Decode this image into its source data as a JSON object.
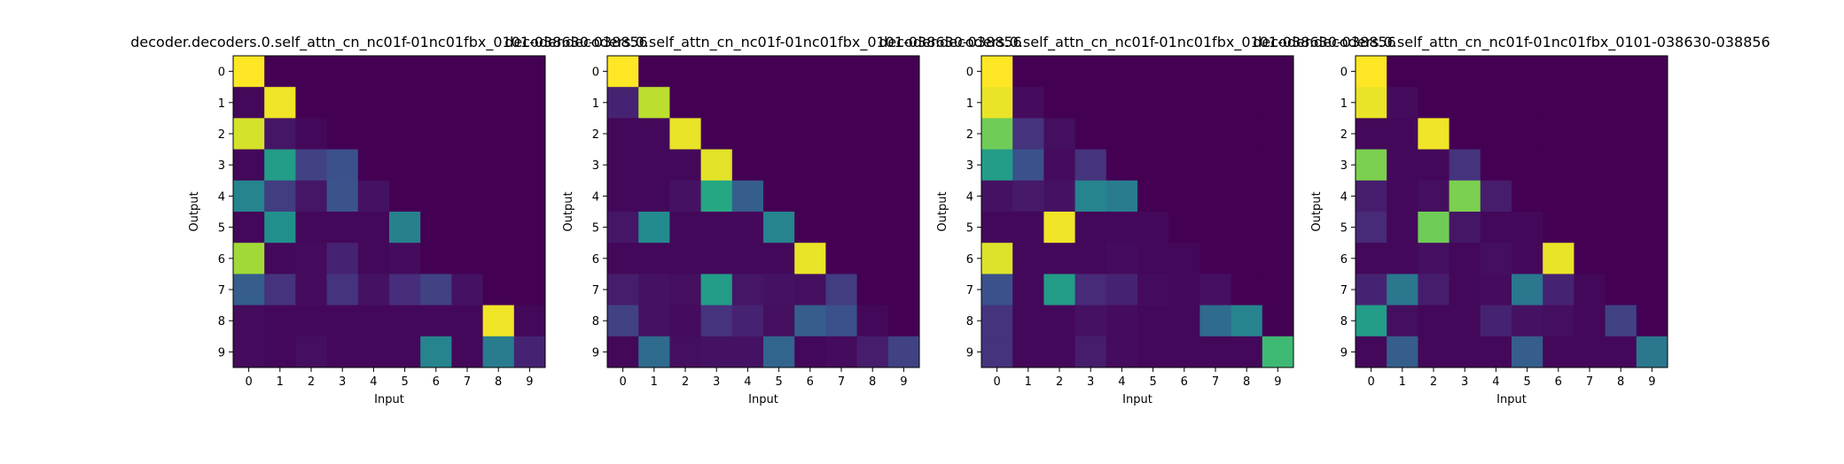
{
  "chart_data": [
    {
      "type": "heatmap",
      "title": "decoder.decoders.0.self_attn_cn_nc01f-01nc01fbx_0101-038630-038856",
      "xlabel": "Input",
      "ylabel": "Output",
      "x": [
        "0",
        "1",
        "2",
        "3",
        "4",
        "5",
        "6",
        "7",
        "8",
        "9"
      ],
      "y": [
        "0",
        "1",
        "2",
        "3",
        "4",
        "5",
        "6",
        "7",
        "8",
        "9"
      ],
      "colormap": "viridis",
      "values": [
        [
          1.0,
          0,
          0,
          0,
          0,
          0,
          0,
          0,
          0,
          0
        ],
        [
          0.02,
          0.98,
          0,
          0,
          0,
          0,
          0,
          0,
          0,
          0
        ],
        [
          0.94,
          0.06,
          0.02,
          0,
          0,
          0,
          0,
          0,
          0,
          0
        ],
        [
          0.02,
          0.55,
          0.2,
          0.25,
          0,
          0,
          0,
          0,
          0,
          0
        ],
        [
          0.45,
          0.18,
          0.06,
          0.26,
          0.05,
          0,
          0,
          0,
          0,
          0
        ],
        [
          0.02,
          0.5,
          0.02,
          0.02,
          0.02,
          0.44,
          0,
          0,
          0,
          0
        ],
        [
          0.86,
          0.02,
          0.03,
          0.1,
          0.02,
          0.03,
          0,
          0,
          0,
          0
        ],
        [
          0.3,
          0.15,
          0.03,
          0.15,
          0.05,
          0.13,
          0.2,
          0.05,
          0,
          0
        ],
        [
          0.03,
          0.02,
          0.02,
          0.02,
          0.02,
          0.02,
          0.02,
          0.02,
          0.98,
          0.02
        ],
        [
          0.03,
          0.02,
          0.04,
          0.02,
          0.02,
          0.02,
          0.45,
          0.02,
          0.42,
          0.1
        ]
      ]
    },
    {
      "type": "heatmap",
      "title": "decoder.decoders.0.self_attn_cn_nc01f-01nc01fbx_0101-038630-038856",
      "xlabel": "Input",
      "ylabel": "Output",
      "x": [
        "0",
        "1",
        "2",
        "3",
        "4",
        "5",
        "6",
        "7",
        "8",
        "9"
      ],
      "y": [
        "0",
        "1",
        "2",
        "3",
        "4",
        "5",
        "6",
        "7",
        "8",
        "9"
      ],
      "colormap": "viridis",
      "values": [
        [
          1.0,
          0,
          0,
          0,
          0,
          0,
          0,
          0,
          0,
          0
        ],
        [
          0.1,
          0.9,
          0,
          0,
          0,
          0,
          0,
          0,
          0,
          0
        ],
        [
          0.02,
          0.02,
          0.97,
          0,
          0,
          0,
          0,
          0,
          0,
          0
        ],
        [
          0.02,
          0.02,
          0.02,
          0.96,
          0,
          0,
          0,
          0,
          0,
          0
        ],
        [
          0.02,
          0.02,
          0.05,
          0.6,
          0.3,
          0,
          0,
          0,
          0,
          0
        ],
        [
          0.06,
          0.48,
          0.02,
          0.02,
          0.02,
          0.45,
          0,
          0,
          0,
          0
        ],
        [
          0.02,
          0.02,
          0.02,
          0.02,
          0.02,
          0.02,
          0.97,
          0,
          0,
          0
        ],
        [
          0.08,
          0.05,
          0.04,
          0.55,
          0.06,
          0.05,
          0.04,
          0.18,
          0,
          0
        ],
        [
          0.2,
          0.05,
          0.03,
          0.15,
          0.1,
          0.04,
          0.3,
          0.25,
          0.02,
          0
        ],
        [
          0.02,
          0.35,
          0.04,
          0.05,
          0.05,
          0.33,
          0.02,
          0.03,
          0.08,
          0.2
        ]
      ]
    },
    {
      "type": "heatmap",
      "title": "decoder.decoders.0.self_attn_cn_nc01f-01nc01fbx_0101-038630-038856",
      "xlabel": "Input",
      "ylabel": "Output",
      "x": [
        "0",
        "1",
        "2",
        "3",
        "4",
        "5",
        "6",
        "7",
        "8",
        "9"
      ],
      "y": [
        "0",
        "1",
        "2",
        "3",
        "4",
        "5",
        "6",
        "7",
        "8",
        "9"
      ],
      "colormap": "viridis",
      "values": [
        [
          1.0,
          0,
          0,
          0,
          0,
          0,
          0,
          0,
          0,
          0
        ],
        [
          0.97,
          0.03,
          0,
          0,
          0,
          0,
          0,
          0,
          0,
          0
        ],
        [
          0.78,
          0.15,
          0.04,
          0,
          0,
          0,
          0,
          0,
          0,
          0
        ],
        [
          0.55,
          0.25,
          0.03,
          0.15,
          0,
          0,
          0,
          0,
          0,
          0
        ],
        [
          0.05,
          0.07,
          0.05,
          0.45,
          0.42,
          0,
          0,
          0,
          0,
          0
        ],
        [
          0.02,
          0.02,
          0.98,
          0.02,
          0.02,
          0.02,
          0,
          0,
          0,
          0
        ],
        [
          0.95,
          0.02,
          0.02,
          0.02,
          0.03,
          0.02,
          0.02,
          0,
          0,
          0
        ],
        [
          0.25,
          0.02,
          0.55,
          0.12,
          0.1,
          0.03,
          0.02,
          0.04,
          0,
          0
        ],
        [
          0.15,
          0.02,
          0.02,
          0.05,
          0.03,
          0.02,
          0.02,
          0.35,
          0.45,
          0
        ],
        [
          0.15,
          0.02,
          0.02,
          0.08,
          0.03,
          0.02,
          0.02,
          0.02,
          0.02,
          0.68
        ]
      ]
    },
    {
      "type": "heatmap",
      "title": "decoder.decoders.0.self_attn_cn_nc01f-01nc01fbx_0101-038630-038856",
      "xlabel": "Input",
      "ylabel": "Output",
      "x": [
        "0",
        "1",
        "2",
        "3",
        "4",
        "5",
        "6",
        "7",
        "8",
        "9"
      ],
      "y": [
        "0",
        "1",
        "2",
        "3",
        "4",
        "5",
        "6",
        "7",
        "8",
        "9"
      ],
      "colormap": "viridis",
      "values": [
        [
          1.0,
          0,
          0,
          0,
          0,
          0,
          0,
          0,
          0,
          0
        ],
        [
          0.97,
          0.03,
          0,
          0,
          0,
          0,
          0,
          0,
          0,
          0
        ],
        [
          0.02,
          0.02,
          0.98,
          0,
          0,
          0,
          0,
          0,
          0,
          0
        ],
        [
          0.8,
          0.02,
          0.02,
          0.15,
          0,
          0,
          0,
          0,
          0,
          0
        ],
        [
          0.08,
          0.02,
          0.04,
          0.8,
          0.08,
          0,
          0,
          0,
          0,
          0
        ],
        [
          0.12,
          0.02,
          0.78,
          0.06,
          0.02,
          0.02,
          0,
          0,
          0,
          0
        ],
        [
          0.02,
          0.02,
          0.04,
          0.02,
          0.04,
          0.02,
          0.97,
          0,
          0,
          0
        ],
        [
          0.1,
          0.4,
          0.08,
          0.02,
          0.03,
          0.4,
          0.1,
          0.02,
          0,
          0
        ],
        [
          0.55,
          0.04,
          0.02,
          0.02,
          0.1,
          0.05,
          0.04,
          0.02,
          0.2,
          0
        ],
        [
          0.02,
          0.3,
          0.02,
          0.02,
          0.02,
          0.3,
          0.02,
          0.02,
          0.02,
          0.4
        ]
      ]
    }
  ]
}
